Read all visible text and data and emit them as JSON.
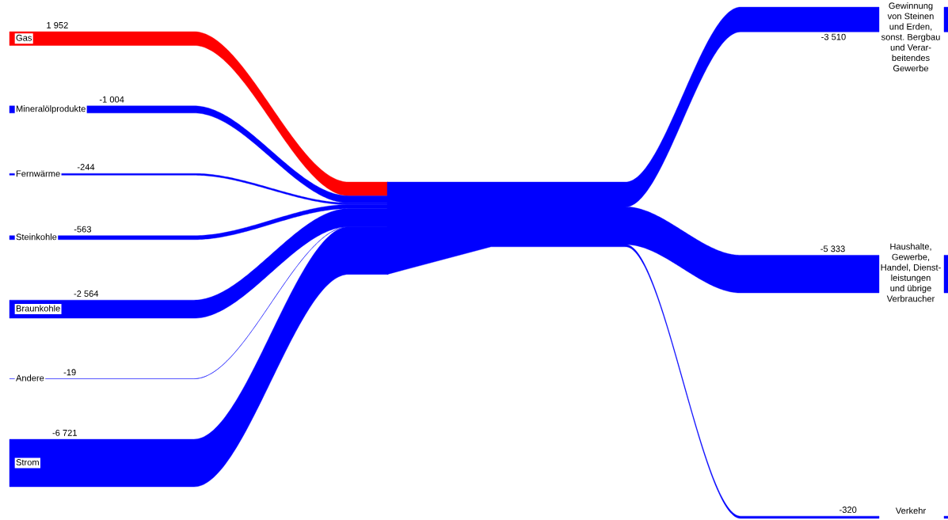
{
  "chart_data": {
    "type": "other",
    "categories": [
      "Gas",
      "Mineralölprodukte",
      "Fernwärme",
      "Steinkohle",
      "Braunkohle",
      "Andere",
      "Strom",
      "Gewinnung\nvon Steinen\nund Erden,\nsonst. Bergbau\nund Verar-\nbeitendes\nGewerbe",
      "Haushalte,\nGewerbe,\nHandel, Dienst-\nleistungen\nund übrige\nVerbraucher",
      "Verkehr"
    ],
    "series": [
      {
        "values": [
          1952,
          -1004,
          -244,
          -563,
          -2564,
          -19,
          -6721,
          null,
          null,
          null
        ],
        "colors": [
          "#ff0000",
          "#0000ff",
          "#0000ff",
          "#0000ff",
          "#0000ff",
          "#0000ff",
          "#0000ff",
          null,
          null,
          null
        ]
      },
      {
        "values": [
          null,
          null,
          null,
          null,
          null,
          null,
          null,
          -3510,
          -5333,
          -320
        ],
        "color": "#0000ff"
      }
    ],
    "data_labels": true
  }
}
